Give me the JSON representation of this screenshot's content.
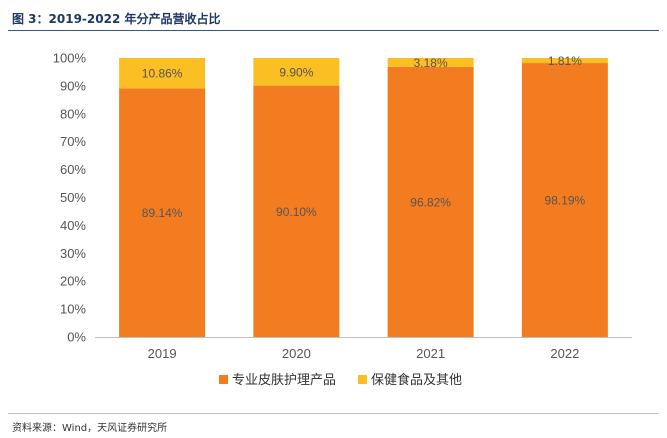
{
  "figure_title": "图 3：2019-2022 年分产品营收占比",
  "source": "资料来源：Wind，天风证券研究所",
  "colors": {
    "series1": "#f47c20",
    "series2": "#fbbf24",
    "axis": "#bfbfbf"
  },
  "chart_data": {
    "type": "bar",
    "stacked": true,
    "categories": [
      "2019",
      "2020",
      "2021",
      "2022"
    ],
    "series": [
      {
        "name": "专业皮肤护理产品",
        "values": [
          89.14,
          90.1,
          96.82,
          98.19
        ],
        "labels": [
          "89.14%",
          "90.10%",
          "96.82%",
          "98.19%"
        ]
      },
      {
        "name": "保健食品及其他",
        "values": [
          10.86,
          9.9,
          3.18,
          1.81
        ],
        "labels": [
          "10.86%",
          "9.90%",
          "3.18%",
          "1.81%"
        ]
      }
    ],
    "yticks": [
      "0%",
      "10%",
      "20%",
      "30%",
      "40%",
      "50%",
      "60%",
      "70%",
      "80%",
      "90%",
      "100%"
    ],
    "ylim": [
      0,
      100
    ],
    "grid": false,
    "legend": "bottom"
  }
}
